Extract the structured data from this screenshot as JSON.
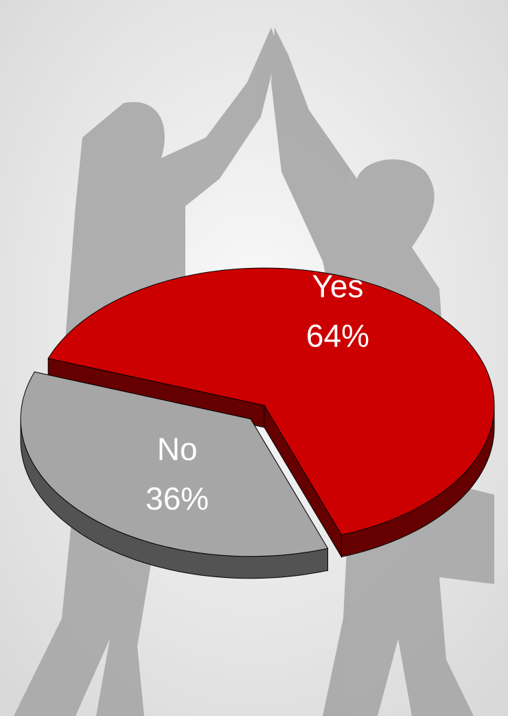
{
  "chart_data": {
    "type": "pie",
    "categories": [
      "Yes",
      "No"
    ],
    "values": [
      64,
      36
    ],
    "value_labels": [
      "64%",
      "36%"
    ],
    "colors": [
      "#cc0000",
      "#a6a6a6"
    ],
    "explode": [
      false,
      true
    ]
  }
}
